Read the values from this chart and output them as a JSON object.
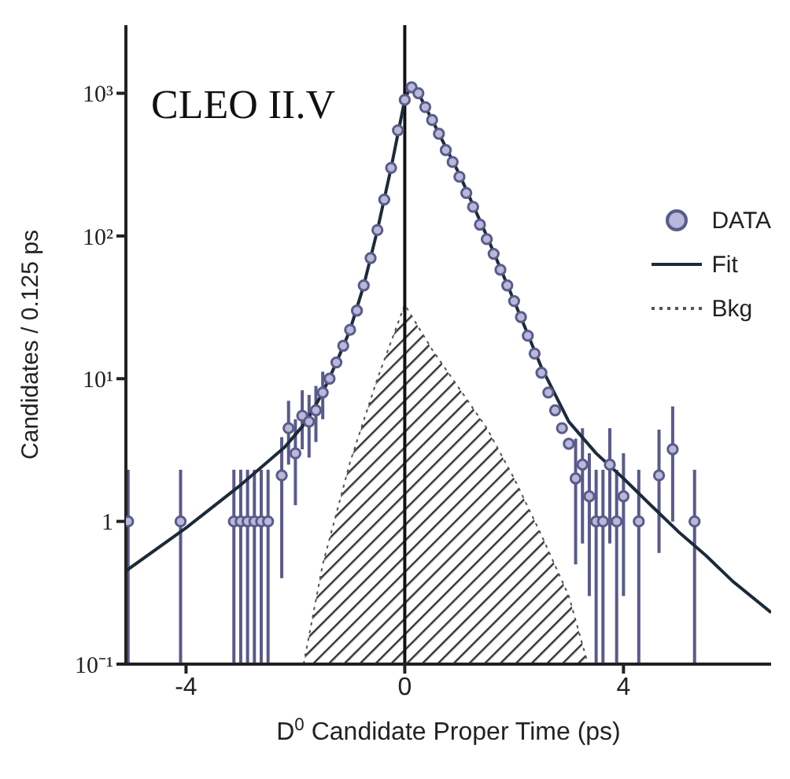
{
  "chart_data": {
    "type": "scatter",
    "xlabel": "D$^{0}$ Candidate Proper Time (ps)",
    "ylabel": "Candidates / 0.125 ps",
    "annotations": [
      "CLEO II.V"
    ],
    "log": "y",
    "xlim": [
      -5.1,
      6.7
    ],
    "ylim": [
      0.1,
      3000
    ],
    "xticks": [
      -4,
      0,
      4
    ],
    "yticks": [
      {
        "value": 0.1,
        "label": "10⁻¹"
      },
      1,
      {
        "value": 10,
        "label": "10¹"
      },
      {
        "value": 100,
        "label": "10²"
      },
      {
        "value": 1000,
        "label": "10³"
      }
    ],
    "legend": "right",
    "ref_lines": [
      {
        "axis": "x",
        "value": 0,
        "color": "#111111"
      }
    ],
    "series": [
      {
        "name": "DATA",
        "marker": "circle",
        "color": "#5a5a8c",
        "x": [
          -5.06,
          -4.1,
          -3.125,
          -3.0,
          -2.875,
          -2.75,
          -2.625,
          -2.5,
          -2.25,
          -2.125,
          -2.0,
          -1.875,
          -1.75,
          -1.625,
          -1.5,
          -1.375,
          -1.25,
          -1.125,
          -1.0,
          -0.875,
          -0.75,
          -0.625,
          -0.5,
          -0.375,
          -0.25,
          -0.125,
          0.0,
          0.125,
          0.25,
          0.375,
          0.5,
          0.625,
          0.75,
          0.875,
          1.0,
          1.125,
          1.25,
          1.375,
          1.5,
          1.625,
          1.75,
          1.875,
          2.0,
          2.125,
          2.25,
          2.375,
          2.5,
          2.625,
          2.75,
          2.875,
          3.0,
          3.125,
          3.25,
          3.375,
          3.5,
          3.625,
          3.75,
          3.875,
          4.0,
          4.28,
          4.65,
          4.9,
          5.3
        ],
        "values": [
          1,
          1,
          1,
          1,
          1,
          1,
          1,
          1,
          2.1,
          4.5,
          3,
          5.5,
          5,
          6,
          8,
          10,
          13,
          17,
          22,
          30,
          45,
          70,
          110,
          180,
          300,
          550,
          900,
          1100,
          1000,
          800,
          650,
          520,
          400,
          330,
          260,
          200,
          160,
          120,
          95,
          75,
          58,
          45,
          35,
          27,
          20,
          15,
          11,
          8,
          6,
          4.5,
          3.5,
          2,
          2.5,
          1.5,
          1,
          1,
          2.5,
          1,
          1.5,
          1,
          2.1,
          3.2,
          1
        ],
        "errors": [
          [
            0.1,
            2.3
          ],
          [
            0.1,
            2.3
          ],
          [
            0.1,
            2.3
          ],
          [
            0.1,
            2.3
          ],
          [
            0.1,
            2.3
          ],
          [
            0.1,
            2.3
          ],
          [
            0.1,
            2.3
          ],
          [
            0.1,
            2.3
          ],
          [
            0.4,
            3.9
          ],
          [
            2.5,
            7
          ],
          [
            1.3,
            5.2
          ],
          [
            3.2,
            8.3
          ],
          [
            2.8,
            7.7
          ],
          [
            3.6,
            8.9
          ],
          [
            5.2,
            11.2
          ],
          null,
          null,
          null,
          null,
          null,
          null,
          null,
          null,
          null,
          null,
          null,
          null,
          null,
          null,
          null,
          null,
          null,
          null,
          null,
          null,
          null,
          null,
          null,
          null,
          null,
          null,
          null,
          null,
          null,
          null,
          null,
          null,
          null,
          null,
          null,
          null,
          [
            0.5,
            3.8
          ],
          [
            0.7,
            4.5
          ],
          [
            0.3,
            3
          ],
          [
            0.1,
            2.3
          ],
          [
            0.1,
            2.3
          ],
          [
            0.7,
            4.5
          ],
          [
            0.1,
            2.3
          ],
          [
            0.3,
            3
          ],
          [
            0.1,
            2.3
          ],
          [
            0.6,
            4.4
          ],
          [
            1,
            6.4
          ],
          [
            0.1,
            2.3
          ]
        ]
      },
      {
        "name": "Fit",
        "type": "line",
        "line_style": "solid",
        "marker": "none",
        "color": "#1c2a3a",
        "x": [
          -5.1,
          -4,
          -3,
          -2.2,
          -1.8,
          -1.5,
          -1.25,
          -1,
          -0.75,
          -0.5,
          -0.25,
          0,
          0.1,
          0.25,
          0.5,
          1,
          1.5,
          2,
          2.5,
          3,
          3.5,
          4,
          4.5,
          5,
          5.5,
          6,
          6.7
        ],
        "values": [
          0.45,
          0.9,
          1.8,
          3.3,
          5,
          8,
          13,
          22,
          45,
          110,
          300,
          900,
          1100,
          1000,
          650,
          270,
          100,
          35,
          12,
          5,
          3,
          2,
          1.3,
          0.85,
          0.58,
          0.38,
          0.23
        ]
      },
      {
        "name": "Bkg",
        "type": "area",
        "line_style": "dotted",
        "marker": "none",
        "color": "#555555",
        "x": [
          -1.85,
          -1.5,
          -1,
          -0.5,
          0,
          0.5,
          1,
          1.5,
          2,
          2.5,
          3,
          3.35
        ],
        "values": [
          0.1,
          0.5,
          2.6,
          10,
          33,
          16,
          8.5,
          4.5,
          2,
          0.8,
          0.3,
          0.1
        ]
      }
    ]
  }
}
